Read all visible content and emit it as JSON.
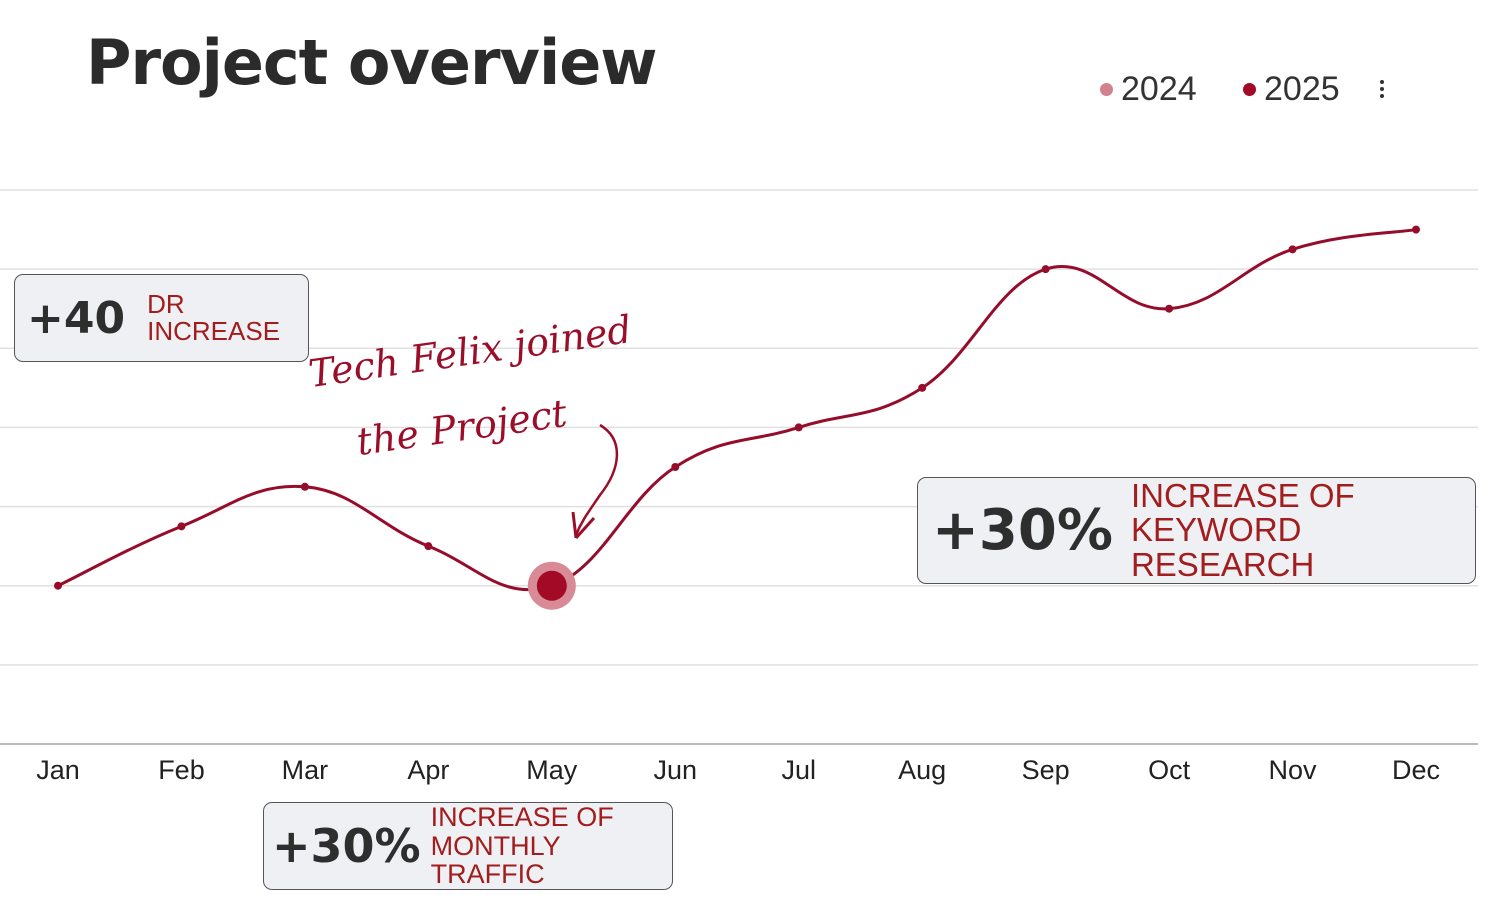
{
  "title": "Project overview",
  "menu_icon": "more-vertical-icon",
  "colors": {
    "series_2024": "#d4818f",
    "series_2025": "#a30a26",
    "line": "#960d2b",
    "highlight_halo": "#d88a97",
    "annotation_text": "#a21d1d"
  },
  "annotations": {
    "dr": {
      "big": "+40",
      "line1": "DR",
      "line2": "INCREASE"
    },
    "keyword": {
      "big": "+30%",
      "line1": "INCREASE OF",
      "line2": "KEYWORD RESEARCH"
    },
    "traffic": {
      "big": "+30%",
      "line1": "INCREASE OF",
      "line2": "MONTHLY TRAFFIC"
    },
    "handwritten": {
      "line1": "Tech Felix joined",
      "line2": "the Project"
    }
  },
  "chart_data": {
    "type": "line",
    "title": "Project overview",
    "categories": [
      "Jan",
      "Feb",
      "Mar",
      "Apr",
      "May",
      "Jun",
      "Jul",
      "Aug",
      "Sep",
      "Oct",
      "Nov",
      "Dec"
    ],
    "legend": [
      "2024",
      "2025"
    ],
    "legend_position": "top-right",
    "series": [
      {
        "name": "2025",
        "values": [
          2.0,
          2.75,
          3.25,
          2.5,
          2.0,
          3.5,
          4.0,
          4.5,
          6.0,
          5.5,
          6.25,
          6.5
        ]
      }
    ],
    "highlight": {
      "category": "May",
      "series": "2025"
    },
    "ylim": [
      0,
      7
    ],
    "grid": true,
    "xlabel": "",
    "ylabel": ""
  }
}
